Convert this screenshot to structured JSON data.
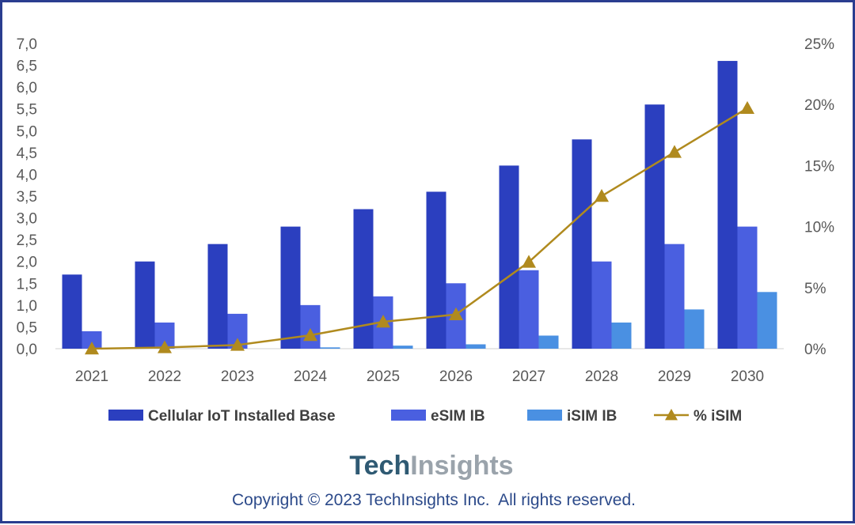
{
  "chart_data": {
    "type": "bar",
    "categories": [
      "2021",
      "2022",
      "2023",
      "2024",
      "2025",
      "2026",
      "2027",
      "2028",
      "2029",
      "2030"
    ],
    "series": [
      {
        "name": "Cellular IoT Installed Base",
        "kind": "bar",
        "axis": "left",
        "color": "#2b3fbf",
        "values": [
          1.7,
          2.0,
          2.4,
          2.8,
          3.2,
          3.6,
          4.2,
          4.8,
          5.6,
          6.6
        ]
      },
      {
        "name": "eSIM IB",
        "kind": "bar",
        "axis": "left",
        "color": "#4a5fe0",
        "values": [
          0.4,
          0.6,
          0.8,
          1.0,
          1.2,
          1.5,
          1.8,
          2.0,
          2.4,
          2.8
        ]
      },
      {
        "name": "iSIM IB",
        "kind": "bar",
        "axis": "left",
        "color": "#4a90e2",
        "values": [
          0.0,
          0.0,
          0.0,
          0.03,
          0.07,
          0.1,
          0.3,
          0.6,
          0.9,
          1.3
        ]
      },
      {
        "name": "% iSIM",
        "kind": "line",
        "axis": "right",
        "color": "#b08a1e",
        "marker": "triangle",
        "values": [
          0.0,
          0.1,
          0.3,
          1.1,
          2.2,
          2.8,
          7.1,
          12.5,
          16.1,
          19.7
        ]
      }
    ],
    "ylim": [
      0,
      7.0
    ],
    "yticks": [
      "0,0",
      "0,5",
      "1,0",
      "1,5",
      "2,0",
      "2,5",
      "3,0",
      "3,5",
      "4,0",
      "4,5",
      "5,0",
      "5,5",
      "6,0",
      "6,5",
      "7,0"
    ],
    "y2lim": [
      0,
      25
    ],
    "y2ticks": [
      "0%",
      "5%",
      "10%",
      "15%",
      "20%",
      "25%"
    ],
    "legend_position": "bottom",
    "grid": false
  },
  "branding": {
    "logo_part1": "Tech",
    "logo_part2": "Insights",
    "copyright": "Copyright © 2023 TechInsights Inc.  All rights reserved."
  }
}
